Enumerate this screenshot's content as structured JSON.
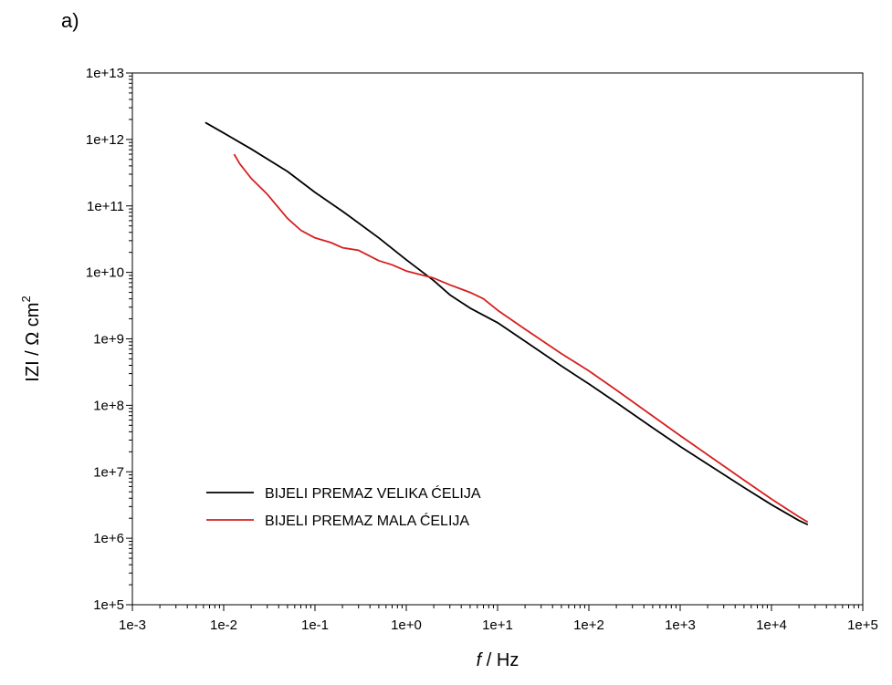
{
  "panel_label": "a)",
  "chart_data": {
    "type": "line",
    "x_scale": "log",
    "y_scale": "log",
    "xlim": [
      0.001,
      100000
    ],
    "ylim": [
      100000,
      10000000000000
    ],
    "x_ticks": [
      0.001,
      0.01,
      0.1,
      1,
      10,
      100,
      1000,
      10000,
      100000
    ],
    "x_tick_labels": [
      "1e-3",
      "1e-2",
      "1e-1",
      "1e+0",
      "1e+1",
      "1e+2",
      "1e+3",
      "1e+4",
      "1e+5"
    ],
    "y_ticks": [
      100000,
      1000000,
      10000000,
      100000000,
      1000000000,
      10000000000,
      100000000000,
      1000000000000,
      10000000000000
    ],
    "y_tick_labels": [
      "1e+5",
      "1e+6",
      "1e+7",
      "1e+8",
      "1e+9",
      "1e+10",
      "1e+11",
      "1e+12",
      "1e+13"
    ],
    "xlabel_italic": "f",
    "xlabel_rest": " / Hz",
    "ylabel_main": "IZI / Ω cm",
    "ylabel_sup": "2",
    "legend_position": "lower-left",
    "grid": false,
    "series": [
      {
        "name": "BIJELI PREMAZ VELIKA ĆELIJA",
        "color": "#000000",
        "x": [
          0.0063,
          0.01,
          0.02,
          0.05,
          0.1,
          0.2,
          0.5,
          1,
          2,
          3,
          5,
          10,
          20,
          50,
          100,
          200,
          500,
          1000,
          2000,
          5000,
          10000,
          20000,
          25000
        ],
        "y": [
          1800000000000.0,
          1250000000000.0,
          720000000000.0,
          330000000000.0,
          160000000000.0,
          83000000000.0,
          33000000000.0,
          15500000000.0,
          7500000000.0,
          4600000000.0,
          2900000000.0,
          1750000000.0,
          920000000.0,
          390000000.0,
          210000000.0,
          110000000.0,
          46000000.0,
          24000000.0,
          13000000.0,
          5800000.0,
          3200000.0,
          1850000.0,
          1600000.0
        ]
      },
      {
        "name": "BIJELI PREMAZ MALA ĆELIJA",
        "color": "#d42020",
        "x": [
          0.013,
          0.015,
          0.02,
          0.03,
          0.05,
          0.07,
          0.1,
          0.15,
          0.2,
          0.3,
          0.5,
          0.7,
          1,
          2,
          3,
          5,
          7,
          10,
          20,
          50,
          100,
          200,
          500,
          1000,
          2000,
          5000,
          10000,
          20000,
          25000
        ],
        "y": [
          600000000000.0,
          430000000000.0,
          260000000000.0,
          150000000000.0,
          65000000000.0,
          43000000000.0,
          33000000000.0,
          28000000000.0,
          23500000000.0,
          21500000000.0,
          15000000000.0,
          13000000000.0,
          10500000000.0,
          8200000000.0,
          6500000000.0,
          5000000000.0,
          4000000000.0,
          2700000000.0,
          1400000000.0,
          600000000.0,
          330000000.0,
          170000000.0,
          69000000.0,
          35000000.0,
          18000000.0,
          7500000.0,
          3900000.0,
          2100000.0,
          1750000.0
        ]
      }
    ]
  }
}
